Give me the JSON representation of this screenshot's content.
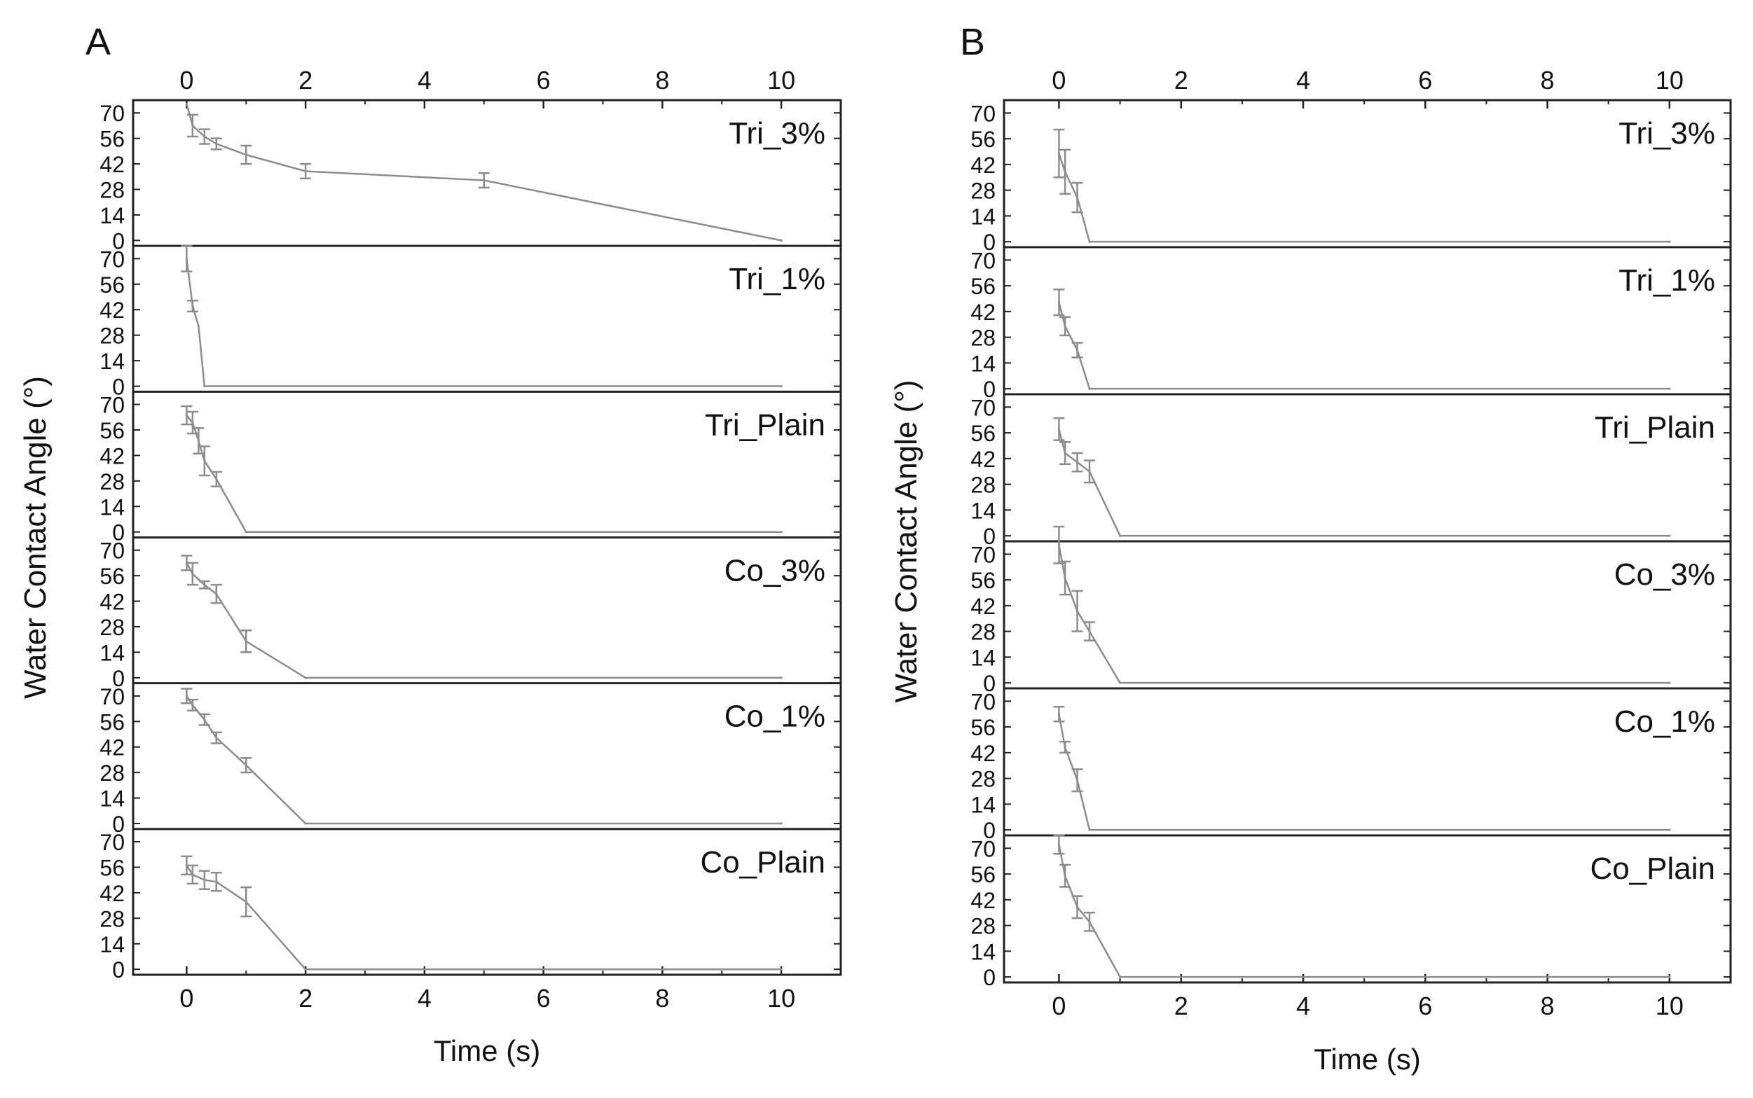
{
  "figure": {
    "panel_labels": [
      "A",
      "B"
    ],
    "xlabel": "Time (s)",
    "ylabel": "Water Contact Angle (°)",
    "y_ticks": [
      0,
      14,
      28,
      42,
      56,
      70
    ],
    "x_ticks": [
      0,
      2,
      4,
      6,
      8,
      10
    ],
    "colors": {
      "line": "#8c8c8c",
      "axis": "#222222",
      "text": "#111111"
    }
  },
  "chart_data": [
    {
      "type": "line",
      "panel": "A",
      "xlabel": "Time (s)",
      "ylabel": "Water Contact Angle (°)",
      "xlim": [
        -0.9,
        11
      ],
      "ylim": [
        -3,
        77
      ],
      "series": [
        {
          "name": "Tri_3%",
          "x": [
            0,
            0.1,
            0.3,
            0.5,
            1,
            2,
            5,
            10
          ],
          "y": [
            75,
            63,
            57,
            53,
            47,
            38,
            33,
            0
          ],
          "err": [
            0,
            6,
            4,
            3,
            5,
            4,
            4,
            0
          ]
        },
        {
          "name": "Tri_1%",
          "x": [
            0,
            0.1,
            0.2,
            0.3,
            10
          ],
          "y": [
            70,
            44,
            33,
            0,
            0
          ],
          "err": [
            7,
            3,
            0,
            0,
            0
          ]
        },
        {
          "name": "Tri_Plain",
          "x": [
            0,
            0.1,
            0.2,
            0.3,
            0.5,
            1,
            10
          ],
          "y": [
            64,
            60,
            50,
            39,
            29,
            0,
            0
          ],
          "err": [
            5,
            6,
            7,
            8,
            4,
            0,
            0
          ]
        },
        {
          "name": "Co_3%",
          "x": [
            0,
            0.1,
            0.3,
            0.5,
            1,
            2,
            10
          ],
          "y": [
            63,
            57,
            51,
            46,
            20,
            0,
            0
          ],
          "err": [
            4,
            6,
            2,
            5,
            6,
            0,
            0
          ]
        },
        {
          "name": "Co_1%",
          "x": [
            0,
            0.1,
            0.3,
            0.5,
            1,
            2,
            10
          ],
          "y": [
            70,
            65,
            57,
            47,
            32,
            0,
            0
          ],
          "err": [
            4,
            3,
            3,
            3,
            4,
            0,
            0
          ]
        },
        {
          "name": "Co_Plain",
          "x": [
            0,
            0.1,
            0.3,
            0.5,
            1,
            2,
            10
          ],
          "y": [
            57,
            52,
            49,
            48,
            37,
            0,
            0
          ],
          "err": [
            5,
            5,
            5,
            5,
            8,
            0,
            0
          ]
        }
      ]
    },
    {
      "type": "line",
      "panel": "B",
      "xlabel": "Time (s)",
      "ylabel": "Water Contact Angle (°)",
      "xlim": [
        -0.9,
        11
      ],
      "ylim": [
        -3,
        77
      ],
      "series": [
        {
          "name": "Tri_3%",
          "x": [
            0,
            0.1,
            0.3,
            0.5,
            10
          ],
          "y": [
            48,
            38,
            24,
            0,
            0
          ],
          "err": [
            13,
            12,
            8,
            0,
            0
          ]
        },
        {
          "name": "Tri_1%",
          "x": [
            0,
            0.1,
            0.3,
            0.5,
            10
          ],
          "y": [
            47,
            34,
            21,
            0,
            0
          ],
          "err": [
            7,
            5,
            4,
            0,
            0
          ]
        },
        {
          "name": "Tri_Plain",
          "x": [
            0,
            0.1,
            0.3,
            0.5,
            1,
            10
          ],
          "y": [
            58,
            45,
            40,
            35,
            0,
            0
          ],
          "err": [
            6,
            6,
            5,
            6,
            0,
            0
          ]
        },
        {
          "name": "Co_3%",
          "x": [
            0,
            0.1,
            0.3,
            0.5,
            1,
            10
          ],
          "y": [
            75,
            57,
            39,
            28,
            0,
            0
          ],
          "err": [
            10,
            9,
            11,
            5,
            0,
            0
          ]
        },
        {
          "name": "Co_1%",
          "x": [
            0,
            0.1,
            0.3,
            0.5,
            10
          ],
          "y": [
            63,
            45,
            27,
            0,
            0
          ],
          "err": [
            4,
            3,
            6,
            0,
            0
          ]
        },
        {
          "name": "Co_Plain",
          "x": [
            0,
            0.1,
            0.3,
            0.5,
            1,
            10
          ],
          "y": [
            72,
            55,
            38,
            30,
            0,
            0
          ],
          "err": [
            5,
            6,
            6,
            5,
            0,
            0
          ]
        }
      ]
    }
  ]
}
